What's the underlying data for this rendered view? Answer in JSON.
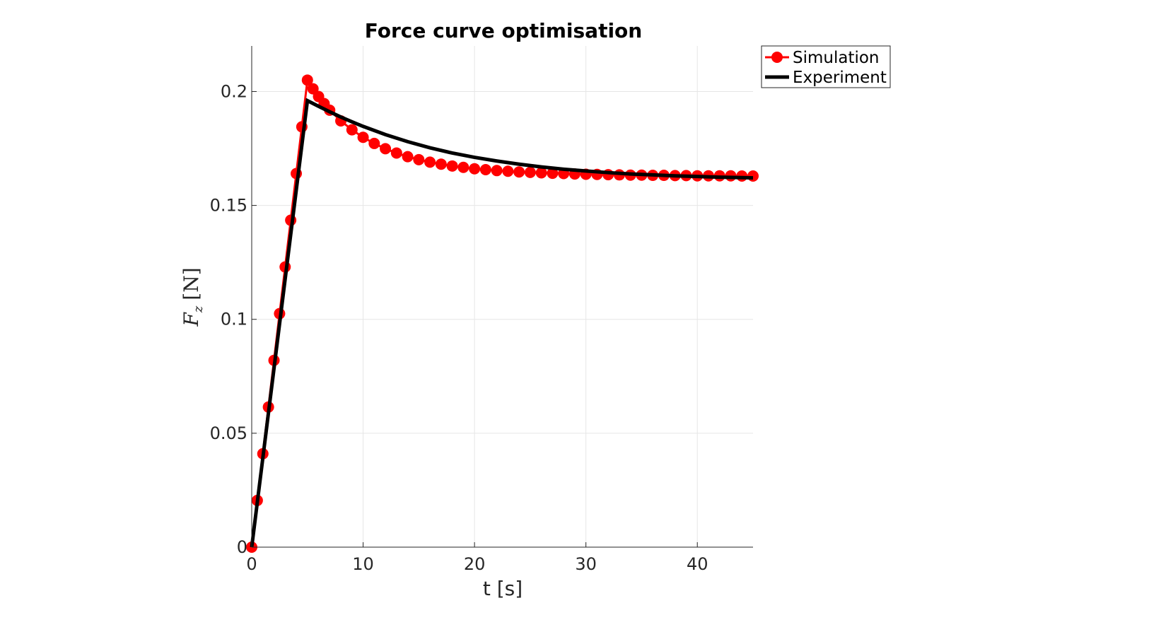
{
  "chart_data": {
    "type": "line",
    "title": "Force curve optimisation",
    "xlabel": "t [s]",
    "ylabel": "F_z [N]",
    "ylabel_symbol": "F",
    "ylabel_sub": "z",
    "ylabel_unit": "[N]",
    "xlim": [
      0,
      45
    ],
    "ylim": [
      0,
      0.22
    ],
    "xticks": [
      0,
      10,
      20,
      30,
      40
    ],
    "xtick_labels": [
      "0",
      "10",
      "20",
      "30",
      "40"
    ],
    "yticks": [
      0,
      0.05,
      0.1,
      0.15,
      0.2
    ],
    "ytick_labels": [
      "0",
      "0.05",
      "0.1",
      "0.15",
      "0.2"
    ],
    "grid": true,
    "legend_position": "top-right",
    "series": [
      {
        "name": "Simulation",
        "color": "#ff0000",
        "marker": "circle",
        "x": [
          0,
          0.5,
          1,
          1.5,
          2,
          2.5,
          3,
          3.5,
          4,
          4.5,
          5,
          5.5,
          6,
          6.5,
          7,
          8,
          9,
          10,
          11,
          12,
          13,
          14,
          15,
          16,
          17,
          18,
          19,
          20,
          21,
          22,
          23,
          24,
          25,
          26,
          27,
          28,
          29,
          30,
          31,
          32,
          33,
          34,
          35,
          36,
          37,
          38,
          39,
          40,
          41,
          42,
          43,
          44,
          45
        ],
        "y": [
          0,
          0.0205,
          0.041,
          0.0615,
          0.082,
          0.1025,
          0.123,
          0.1435,
          0.164,
          0.1845,
          0.205,
          0.2012,
          0.1978,
          0.1947,
          0.1918,
          0.1871,
          0.1832,
          0.1799,
          0.1772,
          0.1749,
          0.173,
          0.1714,
          0.1701,
          0.169,
          0.1681,
          0.1673,
          0.1667,
          0.1661,
          0.1657,
          0.1653,
          0.165,
          0.1647,
          0.1645,
          0.1643,
          0.1641,
          0.164,
          0.1638,
          0.1637,
          0.1636,
          0.1635,
          0.1634,
          0.1633,
          0.1633,
          0.1632,
          0.1632,
          0.1631,
          0.1631,
          0.163,
          0.163,
          0.163,
          0.163,
          0.1629,
          0.1629
        ]
      },
      {
        "name": "Experiment",
        "color": "#000000",
        "marker": "none",
        "x": [
          0,
          5,
          6,
          7,
          8,
          9,
          10,
          12,
          14,
          16,
          18,
          20,
          22,
          24,
          26,
          28,
          30,
          32,
          34,
          36,
          38,
          40,
          42,
          44,
          45
        ],
        "y": [
          0,
          0.196,
          0.1935,
          0.1911,
          0.1888,
          0.1867,
          0.1847,
          0.1811,
          0.178,
          0.1753,
          0.173,
          0.1711,
          0.1695,
          0.1681,
          0.1669,
          0.1659,
          0.1651,
          0.1644,
          0.1638,
          0.1634,
          0.163,
          0.1627,
          0.1624,
          0.1622,
          0.1621
        ]
      }
    ]
  }
}
